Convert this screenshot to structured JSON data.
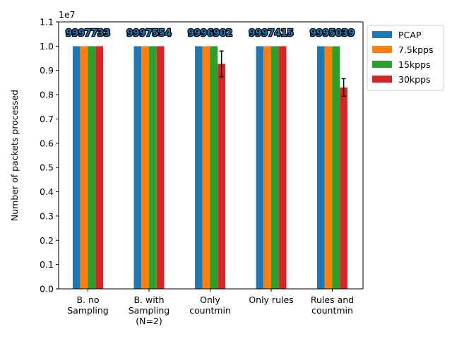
{
  "chart_data": {
    "type": "bar",
    "categories": [
      [
        "B. no",
        "Sampling"
      ],
      [
        "B. with",
        "Sampling",
        "(N=2)"
      ],
      [
        "Only",
        "countmin"
      ],
      [
        "Only rules"
      ],
      [
        "Rules and",
        "countmin"
      ]
    ],
    "series": [
      {
        "name": "PCAP",
        "color": "#1f77b4",
        "values": [
          9997733,
          9997554,
          9996902,
          9997415,
          9995039
        ]
      },
      {
        "name": "7.5kpps",
        "color": "#ff7f0e",
        "values": [
          9997733,
          9997554,
          9996902,
          9997415,
          9995039
        ]
      },
      {
        "name": "15kpps",
        "color": "#2ca02c",
        "values": [
          9997733,
          9997554,
          9996902,
          9997415,
          9995039
        ]
      },
      {
        "name": "30kpps",
        "color": "#d62728",
        "values": [
          9997733,
          9997554,
          9270000,
          9997415,
          8300000
        ]
      }
    ],
    "errors": {
      "30kpps": [
        0,
        0,
        530000,
        0,
        360000
      ]
    },
    "data_labels": [
      "9997733",
      "9997554",
      "9996902",
      "9997415",
      "9995039"
    ],
    "ylabel": "Number of packets processed",
    "xlabel": "",
    "y_offset_text": "1e7",
    "ylim": [
      0,
      11000000
    ],
    "yticks": [
      0,
      1000000,
      2000000,
      3000000,
      4000000,
      5000000,
      6000000,
      7000000,
      8000000,
      9000000,
      10000000,
      11000000
    ],
    "ytick_labels": [
      "0.0",
      "0.1",
      "0.2",
      "0.3",
      "0.4",
      "0.5",
      "0.6",
      "0.7",
      "0.8",
      "0.9",
      "1.0",
      "1.1"
    ],
    "legend_position": "upper right, outside plot"
  }
}
